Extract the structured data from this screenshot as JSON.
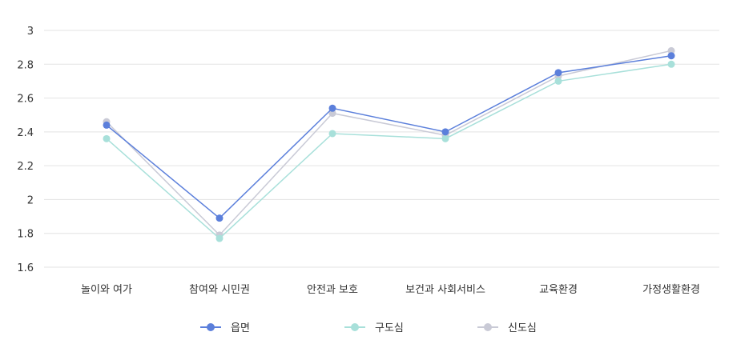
{
  "chart_data": {
    "type": "line",
    "categories": [
      "놀이와 여가",
      "참여와 시민권",
      "안전과 보호",
      "보건과 사회서비스",
      "교육환경",
      "가정생활환경"
    ],
    "ylim": [
      1.6,
      3
    ],
    "yticks": [
      1.6,
      1.8,
      2,
      2.2,
      2.4,
      2.6,
      2.8,
      3
    ],
    "ytick_labels": [
      "1.6",
      "1.8",
      "2",
      "2.2",
      "2.4",
      "2.6",
      "2.8",
      "3"
    ],
    "grid": true,
    "legend_position": "bottom",
    "series": [
      {
        "name": "읍면",
        "color": "#5b7fdb",
        "values": [
          2.44,
          1.89,
          2.54,
          2.4,
          2.75,
          2.85
        ]
      },
      {
        "name": "구도심",
        "color": "#a8e0da",
        "values": [
          2.36,
          1.77,
          2.39,
          2.36,
          2.7,
          2.8
        ]
      },
      {
        "name": "신도심",
        "color": "#c9cad6",
        "values": [
          2.46,
          1.79,
          2.51,
          2.38,
          2.73,
          2.88
        ]
      }
    ]
  }
}
